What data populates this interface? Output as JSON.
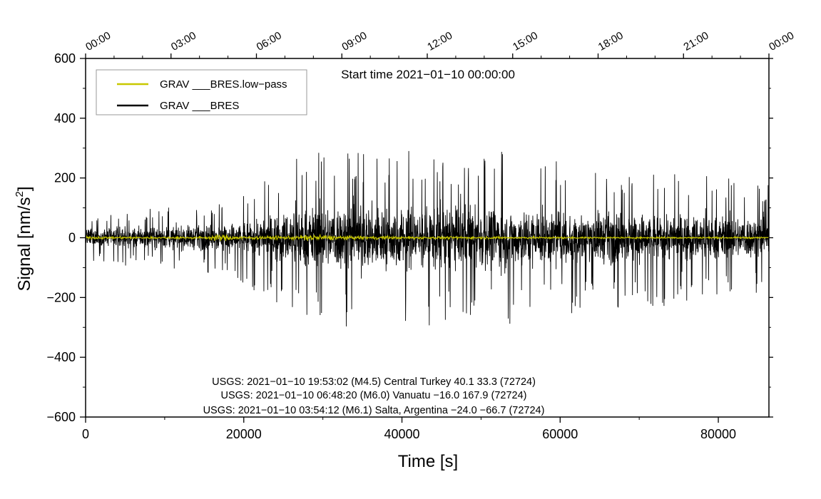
{
  "chart_data": {
    "type": "line",
    "xlabel": "Time [s]",
    "ylabel_main": "Signal [nm/s",
    "ylabel_sup": "2",
    "ylabel_tail": "]",
    "xlim": [
      0,
      86400
    ],
    "ylim": [
      -600,
      600
    ],
    "x_ticks": [
      0,
      20000,
      40000,
      60000,
      80000
    ],
    "x_tick_labels": [
      "0",
      "20000",
      "40000",
      "60000",
      "80000"
    ],
    "y_ticks": [
      -600,
      -400,
      -200,
      0,
      200,
      400,
      600
    ],
    "y_tick_labels": [
      "−600",
      "−400",
      "−200",
      "0",
      "200",
      "400",
      "600"
    ],
    "top_ticks_seconds": [
      0,
      10800,
      21600,
      32400,
      43200,
      54000,
      64800,
      75600,
      86400
    ],
    "top_tick_labels": [
      "00:00",
      "03:00",
      "06:00",
      "09:00",
      "12:00",
      "15:00",
      "18:00",
      "21:00",
      "00:00"
    ],
    "start_time_label": "Start time 2021−01−10 00:00:00",
    "series": [
      {
        "name": "GRAV ___BRES.low−pass",
        "color": "#c8c800",
        "envelope": [
          [
            0,
            8
          ],
          [
            10000,
            6
          ],
          [
            15000,
            8
          ],
          [
            17000,
            22
          ],
          [
            20000,
            10
          ],
          [
            26000,
            12
          ],
          [
            29000,
            24
          ],
          [
            32000,
            12
          ],
          [
            40000,
            9
          ],
          [
            60000,
            6
          ],
          [
            86400,
            5
          ]
        ]
      },
      {
        "name": "GRAV ___BRES",
        "color": "#000000",
        "envelope": [
          [
            0,
            60
          ],
          [
            10000,
            75
          ],
          [
            15000,
            85
          ],
          [
            20000,
            110
          ],
          [
            24000,
            160
          ],
          [
            27000,
            200
          ],
          [
            33000,
            230
          ],
          [
            40000,
            210
          ],
          [
            50000,
            220
          ],
          [
            60000,
            185
          ],
          [
            70000,
            170
          ],
          [
            80000,
            150
          ],
          [
            86400,
            140
          ]
        ]
      }
    ],
    "annotations": [
      "USGS: 2021−01−10 19:53:02 (M4.5) Central Turkey 40.1 33.3 (72724)",
      "USGS: 2021−01−10 06:48:20 (M6.0) Vanuatu −16.0 167.9 (72724)",
      "USGS: 2021−01−10 03:54:12 (M6.1) Salta, Argentina −24.0 −66.7 (72724)"
    ]
  }
}
